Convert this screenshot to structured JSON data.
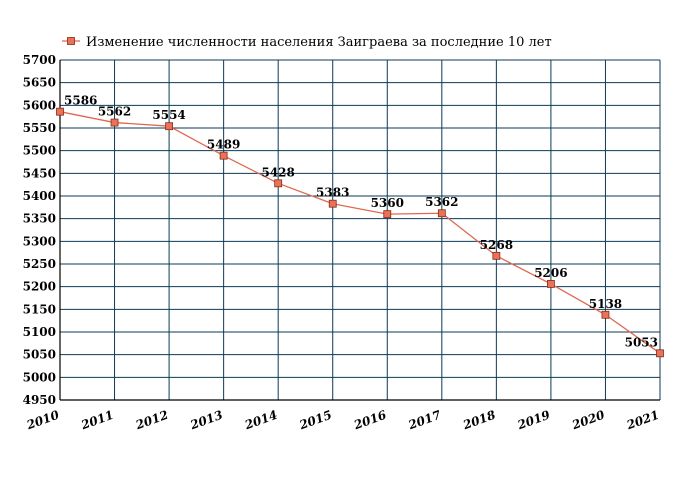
{
  "chart_data": {
    "type": "line",
    "title": "",
    "xlabel": "",
    "ylabel": "",
    "legend_position": "top",
    "grid": true,
    "x": [
      "2010",
      "2011",
      "2012",
      "2013",
      "2014",
      "2015",
      "2016",
      "2017",
      "2018",
      "2019",
      "2020",
      "2021"
    ],
    "ylim": [
      4950,
      5700
    ],
    "yticks": [
      4950,
      5000,
      5050,
      5100,
      5150,
      5200,
      5250,
      5300,
      5350,
      5400,
      5450,
      5500,
      5550,
      5600,
      5650,
      5700
    ],
    "series": [
      {
        "name": "Изменение численности населения Заиграева за последние 10 лет",
        "values": [
          5586,
          5562,
          5554,
          5489,
          5428,
          5383,
          5360,
          5362,
          5268,
          5206,
          5138,
          5053
        ],
        "labels": [
          "5586",
          "5562",
          "5554",
          "5489",
          "5428",
          "5383",
          "5360",
          "5362",
          "5268",
          "5206",
          "5138",
          "5053"
        ]
      }
    ],
    "colors": {
      "line": "#e06850",
      "marker_fill": "#e8735a",
      "marker_stroke": "#8a2a10",
      "grid": "#0a3a5a",
      "axis": "#000000"
    }
  }
}
